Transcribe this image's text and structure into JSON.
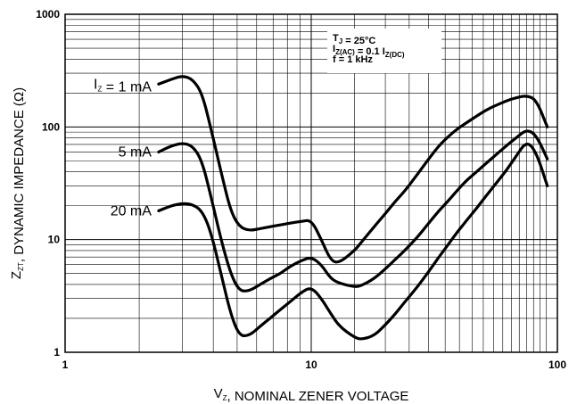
{
  "chart_data": {
    "type": "line",
    "x_scale": "log",
    "y_scale": "log",
    "xlim": [
      1,
      100
    ],
    "ylim": [
      1,
      1000
    ],
    "grid": true,
    "x_ticks": [
      "1",
      "10",
      "100"
    ],
    "y_ticks": [
      "1",
      "10",
      "100",
      "1000"
    ],
    "xlabel": {
      "prefix": "V",
      "sub": "Z",
      "rest": ", NOMINAL ZENER VOLTAGE"
    },
    "ylabel": {
      "prefix": "Z",
      "sub": "ZT",
      "rest": ", DYNAMIC IMPEDANCE (Ω)"
    },
    "conditions": [
      {
        "parts": [
          {
            "t": "T"
          },
          {
            "t": "J",
            "sub": true
          },
          {
            "t": " = 25°C"
          }
        ]
      },
      {
        "parts": [
          {
            "t": "I"
          },
          {
            "t": "Z(AC)",
            "sub": true
          },
          {
            "t": " = 0.1 I"
          },
          {
            "t": "Z(DC)",
            "sub": true
          }
        ]
      },
      {
        "parts": [
          {
            "t": "f = 1 kHz"
          }
        ]
      }
    ],
    "series": [
      {
        "label": {
          "prefix": "I",
          "sub": "Z",
          "rest": " = 1 mA"
        },
        "points": [
          [
            2.4,
            240
          ],
          [
            2.7,
            265
          ],
          [
            3.0,
            285
          ],
          [
            3.3,
            265
          ],
          [
            3.6,
            200
          ],
          [
            3.9,
            100
          ],
          [
            4.3,
            40
          ],
          [
            4.7,
            18
          ],
          [
            5.1,
            13
          ],
          [
            5.6,
            12
          ],
          [
            6.2,
            12.5
          ],
          [
            6.8,
            13
          ],
          [
            7.5,
            13.5
          ],
          [
            8.2,
            14
          ],
          [
            9.1,
            14.5
          ],
          [
            10,
            15
          ],
          [
            11,
            10
          ],
          [
            12,
            6.5
          ],
          [
            13,
            6.2
          ],
          [
            15,
            8
          ],
          [
            16,
            9.5
          ],
          [
            18,
            13
          ],
          [
            20,
            17
          ],
          [
            22,
            22
          ],
          [
            24,
            27
          ],
          [
            27,
            38
          ],
          [
            30,
            52
          ],
          [
            33,
            68
          ],
          [
            36,
            82
          ],
          [
            39,
            95
          ],
          [
            43,
            110
          ],
          [
            47,
            125
          ],
          [
            51,
            140
          ],
          [
            56,
            155
          ],
          [
            62,
            170
          ],
          [
            68,
            182
          ],
          [
            75,
            190
          ],
          [
            82,
            175
          ],
          [
            91,
            100
          ]
        ]
      },
      {
        "label": {
          "prefix": "",
          "sub": "",
          "rest": "5 mA"
        },
        "points": [
          [
            2.4,
            60
          ],
          [
            2.7,
            68
          ],
          [
            3.0,
            72
          ],
          [
            3.3,
            68
          ],
          [
            3.6,
            50
          ],
          [
            3.9,
            25
          ],
          [
            4.3,
            10
          ],
          [
            4.7,
            5
          ],
          [
            5.1,
            3.5
          ],
          [
            5.6,
            3.5
          ],
          [
            6.2,
            4
          ],
          [
            6.8,
            4.5
          ],
          [
            7.5,
            5
          ],
          [
            8.2,
            5.8
          ],
          [
            9.1,
            6.5
          ],
          [
            10,
            7
          ],
          [
            11,
            6
          ],
          [
            12,
            4.5
          ],
          [
            13,
            4.1
          ],
          [
            15,
            3.8
          ],
          [
            16,
            3.9
          ],
          [
            18,
            4.5
          ],
          [
            20,
            5.5
          ],
          [
            22,
            6.7
          ],
          [
            24,
            8
          ],
          [
            27,
            10.5
          ],
          [
            30,
            14
          ],
          [
            33,
            18
          ],
          [
            36,
            22
          ],
          [
            39,
            27
          ],
          [
            43,
            34
          ],
          [
            47,
            40
          ],
          [
            51,
            47
          ],
          [
            56,
            56
          ],
          [
            62,
            68
          ],
          [
            68,
            80
          ],
          [
            75,
            95
          ],
          [
            82,
            85
          ],
          [
            91,
            52
          ]
        ]
      },
      {
        "label": {
          "prefix": "",
          "sub": "",
          "rest": "20 mA"
        },
        "points": [
          [
            2.4,
            18
          ],
          [
            2.7,
            20
          ],
          [
            3.0,
            21
          ],
          [
            3.3,
            20.5
          ],
          [
            3.6,
            18
          ],
          [
            3.9,
            12
          ],
          [
            4.3,
            5
          ],
          [
            4.7,
            2.2
          ],
          [
            5.1,
            1.4
          ],
          [
            5.6,
            1.4
          ],
          [
            6.2,
            1.7
          ],
          [
            6.8,
            2
          ],
          [
            7.5,
            2.4
          ],
          [
            8.2,
            2.8
          ],
          [
            9.1,
            3.4
          ],
          [
            10,
            3.8
          ],
          [
            11,
            3
          ],
          [
            12,
            2.2
          ],
          [
            13,
            1.7
          ],
          [
            15,
            1.35
          ],
          [
            16,
            1.3
          ],
          [
            18,
            1.4
          ],
          [
            20,
            1.75
          ],
          [
            22,
            2.2
          ],
          [
            24,
            2.8
          ],
          [
            27,
            3.8
          ],
          [
            30,
            5.2
          ],
          [
            33,
            7
          ],
          [
            36,
            9
          ],
          [
            39,
            11.5
          ],
          [
            43,
            15
          ],
          [
            47,
            19
          ],
          [
            51,
            24
          ],
          [
            56,
            31
          ],
          [
            62,
            41
          ],
          [
            68,
            55
          ],
          [
            75,
            75
          ],
          [
            82,
            60
          ],
          [
            91,
            30
          ]
        ]
      }
    ]
  }
}
